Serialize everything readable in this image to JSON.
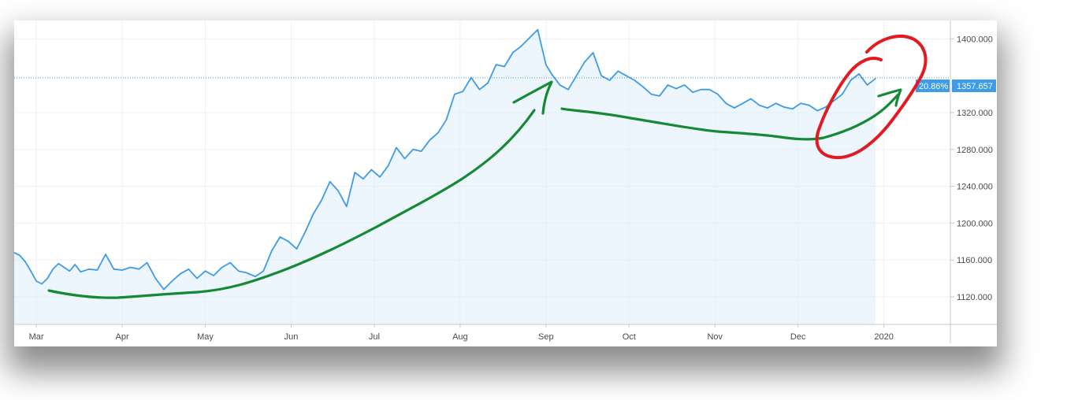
{
  "chart_data": {
    "type": "area",
    "title": "",
    "xlabel": "",
    "ylabel": "",
    "x_ticks": [
      "Mar",
      "Apr",
      "May",
      "Jun",
      "Jul",
      "Aug",
      "Sep",
      "Oct",
      "Nov",
      "Dec",
      "2020"
    ],
    "y_ticks": [
      "1120.000",
      "1160.000",
      "1200.000",
      "1240.000",
      "1280.000",
      "1320.000",
      "1400.000"
    ],
    "ylim": [
      1090,
      1420
    ],
    "xlim": [
      "2019-02-21",
      "2020-01-25"
    ],
    "grid": true,
    "price_label": "1357.657",
    "percent_label": "20.86%",
    "last_value": 1357.657,
    "series": [
      {
        "color": "#3d9be9",
        "x": [
          "2019-02-21",
          "2019-02-23",
          "2019-02-25",
          "2019-02-27",
          "2019-03-01",
          "2019-03-03",
          "2019-03-05",
          "2019-03-07",
          "2019-03-09",
          "2019-03-11",
          "2019-03-13",
          "2019-03-15",
          "2019-03-17",
          "2019-03-20",
          "2019-03-23",
          "2019-03-26",
          "2019-03-29",
          "2019-04-01",
          "2019-04-04",
          "2019-04-07",
          "2019-04-10",
          "2019-04-13",
          "2019-04-16",
          "2019-04-19",
          "2019-04-22",
          "2019-04-25",
          "2019-04-28",
          "2019-05-01",
          "2019-05-04",
          "2019-05-07",
          "2019-05-10",
          "2019-05-13",
          "2019-05-16",
          "2019-05-19",
          "2019-05-22",
          "2019-05-25",
          "2019-05-28",
          "2019-05-31",
          "2019-06-03",
          "2019-06-06",
          "2019-06-09",
          "2019-06-12",
          "2019-06-15",
          "2019-06-18",
          "2019-06-21",
          "2019-06-24",
          "2019-06-27",
          "2019-06-30",
          "2019-07-03",
          "2019-07-06",
          "2019-07-09",
          "2019-07-12",
          "2019-07-15",
          "2019-07-18",
          "2019-07-21",
          "2019-07-24",
          "2019-07-27",
          "2019-07-30",
          "2019-08-02",
          "2019-08-05",
          "2019-08-08",
          "2019-08-11",
          "2019-08-14",
          "2019-08-17",
          "2019-08-20",
          "2019-08-23",
          "2019-08-26",
          "2019-08-29",
          "2019-09-01",
          "2019-09-03",
          "2019-09-06",
          "2019-09-09",
          "2019-09-12",
          "2019-09-15",
          "2019-09-18",
          "2019-09-21",
          "2019-09-24",
          "2019-09-27",
          "2019-09-30",
          "2019-10-03",
          "2019-10-06",
          "2019-10-09",
          "2019-10-12",
          "2019-10-15",
          "2019-10-18",
          "2019-10-21",
          "2019-10-24",
          "2019-10-27",
          "2019-10-30",
          "2019-11-02",
          "2019-11-05",
          "2019-11-08",
          "2019-11-11",
          "2019-11-14",
          "2019-11-17",
          "2019-11-20",
          "2019-11-23",
          "2019-11-26",
          "2019-11-29",
          "2019-12-02",
          "2019-12-05",
          "2019-12-08",
          "2019-12-11",
          "2019-12-14",
          "2019-12-17",
          "2019-12-20",
          "2019-12-23",
          "2019-12-26",
          "2019-12-29"
        ],
        "y": [
          1168,
          1165,
          1158,
          1148,
          1137,
          1134,
          1140,
          1150,
          1156,
          1152,
          1148,
          1155,
          1147,
          1150,
          1149,
          1166,
          1150,
          1149,
          1152,
          1150,
          1157,
          1140,
          1128,
          1137,
          1145,
          1150,
          1140,
          1148,
          1143,
          1152,
          1157,
          1148,
          1146,
          1142,
          1148,
          1170,
          1185,
          1180,
          1172,
          1190,
          1210,
          1225,
          1245,
          1235,
          1218,
          1255,
          1248,
          1258,
          1250,
          1262,
          1282,
          1270,
          1280,
          1278,
          1290,
          1298,
          1312,
          1340,
          1343,
          1358,
          1345,
          1352,
          1372,
          1370,
          1385,
          1392,
          1401,
          1410,
          1372,
          1362,
          1350,
          1345,
          1360,
          1375,
          1385,
          1360,
          1355,
          1365,
          1360,
          1355,
          1348,
          1340,
          1338,
          1350,
          1346,
          1350,
          1342,
          1345,
          1345,
          1340,
          1330,
          1325,
          1330,
          1335,
          1328,
          1325,
          1330,
          1326,
          1324,
          1330,
          1328,
          1322,
          1326,
          1333,
          1340,
          1355,
          1362,
          1350,
          1357
        ]
      }
    ]
  }
}
